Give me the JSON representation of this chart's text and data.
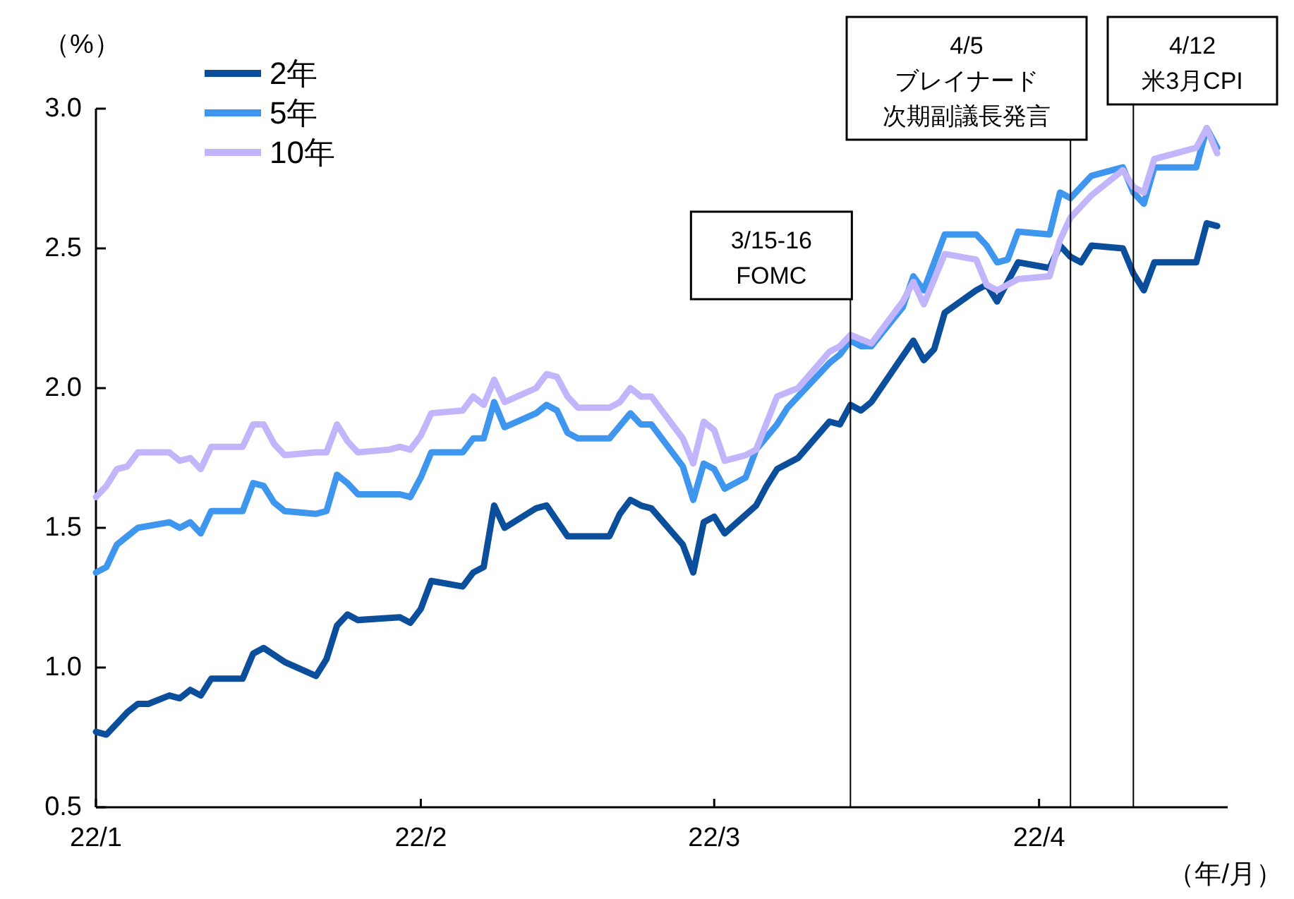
{
  "chart_data": {
    "type": "line",
    "ylabel": "（%）",
    "xlabel": "（年/月）",
    "xlim": [
      "--01-01",
      "--04-19"
    ],
    "xticks": [
      {
        "value": "--01-01",
        "label": "22/1"
      },
      {
        "value": "--02-01",
        "label": "22/2"
      },
      {
        "value": "--03-01",
        "label": "22/3"
      },
      {
        "value": "--04-01",
        "label": "22/4"
      }
    ],
    "ylim": [
      0.5,
      3.0
    ],
    "yticks": [
      {
        "value": 0.5,
        "label": "0.5"
      },
      {
        "value": 1,
        "label": "1.0"
      },
      {
        "value": 1.5,
        "label": "1.5"
      },
      {
        "value": 2,
        "label": "2.0"
      },
      {
        "value": 2.5,
        "label": "2.5"
      },
      {
        "value": 3,
        "label": "3.0"
      }
    ],
    "legend": "top left",
    "ref_lines": [
      {
        "axis": "x",
        "value": "--03-14",
        "label": "3/15-16\nFOMC",
        "color": "#000000"
      },
      {
        "axis": "x",
        "value": "--04-04",
        "label": "4/5\nブレイナード次期副議長発言",
        "color": "#000000"
      },
      {
        "axis": "x",
        "value": "--04-10",
        "label": "4/12\n米3月CPI",
        "color": "#000000"
      }
    ],
    "series": [
      {
        "name": "2年",
        "color": "#0b4f9c",
        "x": [
          "--01-01",
          "--01-02",
          "--01-04",
          "--01-05",
          "--01-06",
          "--01-08",
          "--01-09",
          "--01-10",
          "--01-11",
          "--01-12",
          "--01-15",
          "--01-16",
          "--01-17",
          "--01-19",
          "--01-22",
          "--01-23",
          "--01-24",
          "--01-25",
          "--01-26",
          "--01-30",
          "--01-31",
          "--02-01",
          "--02-02",
          "--02-05",
          "--02-06",
          "--02-07",
          "--02-08",
          "--02-09",
          "--02-12",
          "--02-13",
          "--02-15",
          "--02-19",
          "--02-20",
          "--02-21",
          "--02-22",
          "--02-23",
          "--02-26",
          "--02-27",
          "--02-28",
          "--03-01",
          "--03-02",
          "--03-05",
          "--03-06",
          "--03-07",
          "--03-09",
          "--03-12",
          "--03-13",
          "--03-14",
          "--03-15",
          "--03-16",
          "--03-20",
          "--03-21",
          "--03-22",
          "--03-23",
          "--03-26",
          "--03-27",
          "--03-28",
          "--03-30",
          "--04-02",
          "--04-03",
          "--04-04",
          "--04-05",
          "--04-06",
          "--04-09",
          "--04-10",
          "--04-11",
          "--04-12",
          "--04-16",
          "--04-17",
          "--04-18"
        ],
        "values": [
          0.77,
          0.76,
          0.84,
          0.87,
          0.87,
          0.9,
          0.89,
          0.92,
          0.9,
          0.96,
          0.96,
          1.05,
          1.07,
          1.02,
          0.97,
          1.03,
          1.15,
          1.19,
          1.17,
          1.18,
          1.16,
          1.21,
          1.31,
          1.29,
          1.34,
          1.36,
          1.58,
          1.5,
          1.57,
          1.58,
          1.47,
          1.47,
          1.55,
          1.6,
          1.58,
          1.57,
          1.44,
          1.34,
          1.52,
          1.54,
          1.48,
          1.58,
          1.65,
          1.71,
          1.75,
          1.88,
          1.87,
          1.94,
          1.92,
          1.95,
          2.17,
          2.1,
          2.14,
          2.27,
          2.35,
          2.37,
          2.31,
          2.45,
          2.43,
          2.51,
          2.47,
          2.45,
          2.51,
          2.5,
          2.41,
          2.35,
          2.45,
          2.45,
          2.59,
          2.58
        ]
      },
      {
        "name": "5年",
        "color": "#3f96ee",
        "x": [
          "--01-01",
          "--01-02",
          "--01-03",
          "--01-04",
          "--01-05",
          "--01-08",
          "--01-09",
          "--01-10",
          "--01-11",
          "--01-12",
          "--01-15",
          "--01-16",
          "--01-17",
          "--01-18",
          "--01-19",
          "--01-22",
          "--01-23",
          "--01-24",
          "--01-25",
          "--01-26",
          "--01-29",
          "--01-30",
          "--01-31",
          "--02-01",
          "--02-02",
          "--02-05",
          "--02-06",
          "--02-07",
          "--02-08",
          "--02-09",
          "--02-12",
          "--02-13",
          "--02-14",
          "--02-15",
          "--02-16",
          "--02-19",
          "--02-21",
          "--02-22",
          "--02-23",
          "--02-26",
          "--02-27",
          "--02-28",
          "--03-01",
          "--03-02",
          "--03-04",
          "--03-05",
          "--03-07",
          "--03-08",
          "--03-12",
          "--03-13",
          "--03-14",
          "--03-15",
          "--03-16",
          "--03-19",
          "--03-20",
          "--03-21",
          "--03-23",
          "--03-26",
          "--03-27",
          "--03-28",
          "--03-29",
          "--03-30",
          "--04-02",
          "--04-03",
          "--04-04",
          "--04-06",
          "--04-09",
          "--04-10",
          "--04-11",
          "--04-12",
          "--04-16",
          "--04-17",
          "--04-18"
        ],
        "values": [
          1.34,
          1.36,
          1.44,
          1.47,
          1.5,
          1.52,
          1.5,
          1.52,
          1.48,
          1.56,
          1.56,
          1.66,
          1.65,
          1.59,
          1.56,
          1.55,
          1.56,
          1.69,
          1.66,
          1.62,
          1.62,
          1.62,
          1.61,
          1.68,
          1.77,
          1.77,
          1.82,
          1.82,
          1.95,
          1.86,
          1.91,
          1.94,
          1.92,
          1.84,
          1.82,
          1.82,
          1.91,
          1.87,
          1.87,
          1.72,
          1.6,
          1.73,
          1.71,
          1.64,
          1.68,
          1.78,
          1.87,
          1.93,
          2.09,
          2.12,
          2.17,
          2.15,
          2.15,
          2.29,
          2.4,
          2.35,
          2.55,
          2.55,
          2.51,
          2.45,
          2.46,
          2.56,
          2.55,
          2.7,
          2.68,
          2.76,
          2.79,
          2.7,
          2.66,
          2.79,
          2.79,
          2.93,
          2.86
        ]
      },
      {
        "name": "10年",
        "color": "#c3b5fb",
        "x": [
          "--01-01",
          "--01-02",
          "--01-03",
          "--01-04",
          "--01-05",
          "--01-08",
          "--01-09",
          "--01-10",
          "--01-11",
          "--01-12",
          "--01-15",
          "--01-16",
          "--01-17",
          "--01-18",
          "--01-19",
          "--01-22",
          "--01-23",
          "--01-24",
          "--01-25",
          "--01-26",
          "--01-29",
          "--01-30",
          "--01-31",
          "--02-01",
          "--02-02",
          "--02-05",
          "--02-06",
          "--02-07",
          "--02-08",
          "--02-09",
          "--02-12",
          "--02-13",
          "--02-14",
          "--02-15",
          "--02-16",
          "--02-19",
          "--02-20",
          "--02-21",
          "--02-22",
          "--02-23",
          "--02-26",
          "--02-27",
          "--02-28",
          "--03-01",
          "--03-02",
          "--03-04",
          "--03-05",
          "--03-07",
          "--03-09",
          "--03-12",
          "--03-13",
          "--03-14",
          "--03-16",
          "--03-19",
          "--03-20",
          "--03-21",
          "--03-23",
          "--03-26",
          "--03-27",
          "--03-28",
          "--03-30",
          "--04-02",
          "--04-03",
          "--04-04",
          "--04-06",
          "--04-09",
          "--04-10",
          "--04-11",
          "--04-12",
          "--04-16",
          "--04-17",
          "--04-18"
        ],
        "values": [
          1.61,
          1.65,
          1.71,
          1.72,
          1.77,
          1.77,
          1.74,
          1.75,
          1.71,
          1.79,
          1.79,
          1.87,
          1.87,
          1.8,
          1.76,
          1.77,
          1.77,
          1.87,
          1.81,
          1.77,
          1.78,
          1.79,
          1.78,
          1.83,
          1.91,
          1.92,
          1.97,
          1.94,
          2.03,
          1.95,
          2.0,
          2.05,
          2.04,
          1.97,
          1.93,
          1.93,
          1.95,
          2.0,
          1.97,
          1.97,
          1.82,
          1.73,
          1.88,
          1.85,
          1.74,
          1.76,
          1.78,
          1.97,
          2.0,
          2.13,
          2.15,
          2.19,
          2.16,
          2.31,
          2.38,
          2.3,
          2.48,
          2.46,
          2.37,
          2.35,
          2.39,
          2.4,
          2.53,
          2.61,
          2.69,
          2.78,
          2.72,
          2.7,
          2.82,
          2.86,
          2.93,
          2.84
        ]
      }
    ]
  }
}
